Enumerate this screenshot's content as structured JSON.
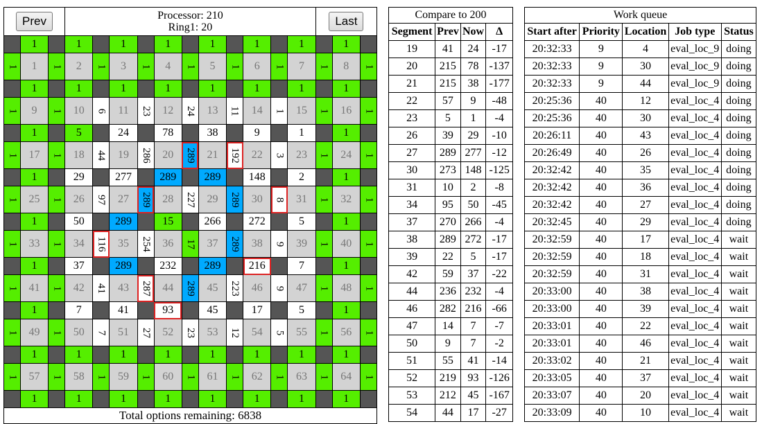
{
  "colors": {
    "dark": "#555555",
    "green": "#55ee00",
    "white": "#ffffff",
    "grey": "#d3d3d3",
    "blue": "#00aaff",
    "red": "#dd2222"
  },
  "header": {
    "prev_label": "Prev",
    "last_label": "Last",
    "processor_text": "Processor: 210",
    "ring_text": "Ring1: 20"
  },
  "board": {
    "footer_text": "Total options remaining: 6838",
    "rows": [
      [
        [
          "d",
          ""
        ],
        [
          "g",
          "1"
        ],
        [
          "d",
          ""
        ],
        [
          "g",
          "1"
        ],
        [
          "d",
          ""
        ],
        [
          "g",
          "1"
        ],
        [
          "d",
          ""
        ],
        [
          "g",
          "1"
        ],
        [
          "d",
          ""
        ],
        [
          "g",
          "1"
        ],
        [
          "d",
          ""
        ],
        [
          "g",
          "1"
        ],
        [
          "d",
          ""
        ],
        [
          "g",
          "1"
        ],
        [
          "d",
          ""
        ],
        [
          "g",
          "1"
        ],
        [
          "d",
          ""
        ]
      ],
      [
        [
          "gr",
          "1"
        ],
        [
          "s",
          "1"
        ],
        [
          "gr",
          "1"
        ],
        [
          "s",
          "2"
        ],
        [
          "gr",
          "1"
        ],
        [
          "s",
          "3"
        ],
        [
          "gr",
          "1"
        ],
        [
          "s",
          "4"
        ],
        [
          "gr",
          "1"
        ],
        [
          "s",
          "5"
        ],
        [
          "gr",
          "1"
        ],
        [
          "s",
          "6"
        ],
        [
          "gr",
          "1"
        ],
        [
          "s",
          "7"
        ],
        [
          "gr",
          "1"
        ],
        [
          "s",
          "8"
        ],
        [
          "gr",
          "1"
        ]
      ],
      [
        [
          "d",
          ""
        ],
        [
          "g",
          "1"
        ],
        [
          "d",
          ""
        ],
        [
          "g",
          "1"
        ],
        [
          "d",
          ""
        ],
        [
          "g",
          "1"
        ],
        [
          "d",
          ""
        ],
        [
          "g",
          "1"
        ],
        [
          "d",
          ""
        ],
        [
          "g",
          "1"
        ],
        [
          "d",
          ""
        ],
        [
          "g",
          "1"
        ],
        [
          "d",
          ""
        ],
        [
          "g",
          "1"
        ],
        [
          "d",
          ""
        ],
        [
          "g",
          "1"
        ],
        [
          "d",
          ""
        ]
      ],
      [
        [
          "gr",
          "1"
        ],
        [
          "s",
          "9"
        ],
        [
          "gr",
          "1"
        ],
        [
          "s",
          "10"
        ],
        [
          "wr",
          "6"
        ],
        [
          "s",
          "11"
        ],
        [
          "wr",
          "23"
        ],
        [
          "s",
          "12"
        ],
        [
          "wr",
          "24"
        ],
        [
          "s",
          "13"
        ],
        [
          "wr",
          "11"
        ],
        [
          "s",
          "14"
        ],
        [
          "wr",
          "1"
        ],
        [
          "s",
          "15"
        ],
        [
          "gr",
          "1"
        ],
        [
          "s",
          "16"
        ],
        [
          "gr",
          "1"
        ]
      ],
      [
        [
          "d",
          ""
        ],
        [
          "g",
          "1"
        ],
        [
          "d",
          ""
        ],
        [
          "g",
          "5"
        ],
        [
          "d",
          ""
        ],
        [
          "w",
          "24"
        ],
        [
          "d",
          ""
        ],
        [
          "w",
          "78"
        ],
        [
          "d",
          ""
        ],
        [
          "w",
          "38"
        ],
        [
          "d",
          ""
        ],
        [
          "w",
          "9"
        ],
        [
          "d",
          ""
        ],
        [
          "w",
          "1"
        ],
        [
          "d",
          ""
        ],
        [
          "g",
          "1"
        ],
        [
          "d",
          ""
        ]
      ],
      [
        [
          "gr",
          "1"
        ],
        [
          "s",
          "17"
        ],
        [
          "gr",
          "1"
        ],
        [
          "s",
          "18"
        ],
        [
          "wr",
          "44"
        ],
        [
          "s",
          "19"
        ],
        [
          "wr",
          "286"
        ],
        [
          "s",
          "20"
        ],
        [
          "br",
          "289"
        ],
        [
          "s",
          "21"
        ],
        [
          "wrr",
          "192"
        ],
        [
          "s",
          "22"
        ],
        [
          "wr",
          "3"
        ],
        [
          "s",
          "23"
        ],
        [
          "gr",
          "1"
        ],
        [
          "s",
          "24"
        ],
        [
          "gr",
          "1"
        ]
      ],
      [
        [
          "d",
          ""
        ],
        [
          "g",
          "1"
        ],
        [
          "d",
          ""
        ],
        [
          "w",
          "29"
        ],
        [
          "d",
          ""
        ],
        [
          "w",
          "277"
        ],
        [
          "d",
          ""
        ],
        [
          "b",
          "289"
        ],
        [
          "d",
          ""
        ],
        [
          "b",
          "289"
        ],
        [
          "d",
          ""
        ],
        [
          "w",
          "148"
        ],
        [
          "d",
          ""
        ],
        [
          "w",
          "2"
        ],
        [
          "d",
          ""
        ],
        [
          "g",
          "1"
        ],
        [
          "d",
          ""
        ]
      ],
      [
        [
          "gr",
          "1"
        ],
        [
          "s",
          "25"
        ],
        [
          "gr",
          "1"
        ],
        [
          "s",
          "26"
        ],
        [
          "wr",
          "97"
        ],
        [
          "s",
          "27"
        ],
        [
          "br",
          "289"
        ],
        [
          "s",
          "28"
        ],
        [
          "wr",
          "227"
        ],
        [
          "s",
          "29"
        ],
        [
          "bn",
          "289"
        ],
        [
          "s",
          "30"
        ],
        [
          "wrr",
          "8"
        ],
        [
          "s",
          "31"
        ],
        [
          "gr",
          "1"
        ],
        [
          "s",
          "32"
        ],
        [
          "gr",
          "1"
        ]
      ],
      [
        [
          "d",
          ""
        ],
        [
          "g",
          "1"
        ],
        [
          "d",
          ""
        ],
        [
          "w",
          "50"
        ],
        [
          "d",
          ""
        ],
        [
          "b",
          "289"
        ],
        [
          "d",
          ""
        ],
        [
          "g",
          "15"
        ],
        [
          "d",
          ""
        ],
        [
          "w",
          "266"
        ],
        [
          "d",
          ""
        ],
        [
          "w",
          "272"
        ],
        [
          "d",
          ""
        ],
        [
          "w",
          "5"
        ],
        [
          "d",
          ""
        ],
        [
          "g",
          "1"
        ],
        [
          "d",
          ""
        ]
      ],
      [
        [
          "gr",
          "1"
        ],
        [
          "s",
          "33"
        ],
        [
          "gr",
          "1"
        ],
        [
          "s",
          "34"
        ],
        [
          "wrr",
          "116"
        ],
        [
          "s",
          "35"
        ],
        [
          "wr",
          "254"
        ],
        [
          "s",
          "36"
        ],
        [
          "gr",
          "17"
        ],
        [
          "s",
          "37"
        ],
        [
          "bn",
          "289"
        ],
        [
          "s",
          "38"
        ],
        [
          "wr",
          "9"
        ],
        [
          "s",
          "39"
        ],
        [
          "gr",
          "1"
        ],
        [
          "s",
          "40"
        ],
        [
          "gr",
          "1"
        ]
      ],
      [
        [
          "d",
          ""
        ],
        [
          "g",
          "1"
        ],
        [
          "d",
          ""
        ],
        [
          "w",
          "37"
        ],
        [
          "d",
          ""
        ],
        [
          "b",
          "289"
        ],
        [
          "d",
          ""
        ],
        [
          "w",
          "232"
        ],
        [
          "d",
          ""
        ],
        [
          "b",
          "289"
        ],
        [
          "d",
          ""
        ],
        [
          "wx",
          "216"
        ],
        [
          "d",
          ""
        ],
        [
          "w",
          "7"
        ],
        [
          "d",
          ""
        ],
        [
          "g",
          "1"
        ],
        [
          "d",
          ""
        ]
      ],
      [
        [
          "gr",
          "1"
        ],
        [
          "s",
          "41"
        ],
        [
          "gr",
          "1"
        ],
        [
          "s",
          "42"
        ],
        [
          "wr",
          "41"
        ],
        [
          "s",
          "43"
        ],
        [
          "wrr",
          "287"
        ],
        [
          "s",
          "44"
        ],
        [
          "bn",
          "289"
        ],
        [
          "s",
          "45"
        ],
        [
          "wr",
          "223"
        ],
        [
          "s",
          "46"
        ],
        [
          "wr",
          "9"
        ],
        [
          "s",
          "47"
        ],
        [
          "gr",
          "1"
        ],
        [
          "s",
          "48"
        ],
        [
          "gr",
          "1"
        ]
      ],
      [
        [
          "d",
          ""
        ],
        [
          "g",
          "1"
        ],
        [
          "d",
          ""
        ],
        [
          "w",
          "7"
        ],
        [
          "d",
          ""
        ],
        [
          "w",
          "41"
        ],
        [
          "d",
          ""
        ],
        [
          "wx",
          "93"
        ],
        [
          "d",
          ""
        ],
        [
          "w",
          "45"
        ],
        [
          "d",
          ""
        ],
        [
          "w",
          "17"
        ],
        [
          "d",
          ""
        ],
        [
          "w",
          "5"
        ],
        [
          "d",
          ""
        ],
        [
          "g",
          "1"
        ],
        [
          "d",
          ""
        ]
      ],
      [
        [
          "gr",
          "1"
        ],
        [
          "s",
          "49"
        ],
        [
          "gr",
          "1"
        ],
        [
          "s",
          "50"
        ],
        [
          "wr",
          "7"
        ],
        [
          "s",
          "51"
        ],
        [
          "wr",
          "27"
        ],
        [
          "s",
          "52"
        ],
        [
          "wr",
          "23"
        ],
        [
          "s",
          "53"
        ],
        [
          "wr",
          "12"
        ],
        [
          "s",
          "54"
        ],
        [
          "wr",
          "5"
        ],
        [
          "s",
          "55"
        ],
        [
          "gr",
          "1"
        ],
        [
          "s",
          "56"
        ],
        [
          "gr",
          "1"
        ]
      ],
      [
        [
          "d",
          ""
        ],
        [
          "g",
          "1"
        ],
        [
          "d",
          ""
        ],
        [
          "g",
          "1"
        ],
        [
          "d",
          ""
        ],
        [
          "g",
          "1"
        ],
        [
          "d",
          ""
        ],
        [
          "g",
          "1"
        ],
        [
          "d",
          ""
        ],
        [
          "g",
          "1"
        ],
        [
          "d",
          ""
        ],
        [
          "g",
          "1"
        ],
        [
          "d",
          ""
        ],
        [
          "g",
          "1"
        ],
        [
          "d",
          ""
        ],
        [
          "g",
          "1"
        ],
        [
          "d",
          ""
        ]
      ],
      [
        [
          "gr",
          "1"
        ],
        [
          "s",
          "57"
        ],
        [
          "gr",
          "1"
        ],
        [
          "s",
          "58"
        ],
        [
          "gr",
          "1"
        ],
        [
          "s",
          "59"
        ],
        [
          "gr",
          "1"
        ],
        [
          "s",
          "60"
        ],
        [
          "gr",
          "1"
        ],
        [
          "s",
          "61"
        ],
        [
          "gr",
          "1"
        ],
        [
          "s",
          "62"
        ],
        [
          "gr",
          "1"
        ],
        [
          "s",
          "63"
        ],
        [
          "gr",
          "1"
        ],
        [
          "s",
          "64"
        ],
        [
          "gr",
          "1"
        ]
      ],
      [
        [
          "d",
          ""
        ],
        [
          "g",
          "1"
        ],
        [
          "d",
          ""
        ],
        [
          "g",
          "1"
        ],
        [
          "d",
          ""
        ],
        [
          "g",
          "1"
        ],
        [
          "d",
          ""
        ],
        [
          "g",
          "1"
        ],
        [
          "d",
          ""
        ],
        [
          "g",
          "1"
        ],
        [
          "d",
          ""
        ],
        [
          "g",
          "1"
        ],
        [
          "d",
          ""
        ],
        [
          "g",
          "1"
        ],
        [
          "d",
          ""
        ],
        [
          "g",
          "1"
        ],
        [
          "d",
          ""
        ]
      ]
    ]
  },
  "compare": {
    "title": "Compare to 200",
    "columns": [
      "Segment",
      "Prev",
      "Now",
      "Δ"
    ],
    "rows": [
      [
        "19",
        "41",
        "24",
        "-17"
      ],
      [
        "20",
        "215",
        "78",
        "-137"
      ],
      [
        "21",
        "215",
        "38",
        "-177"
      ],
      [
        "22",
        "57",
        "9",
        "-48"
      ],
      [
        "23",
        "5",
        "1",
        "-4"
      ],
      [
        "26",
        "39",
        "29",
        "-10"
      ],
      [
        "27",
        "289",
        "277",
        "-12"
      ],
      [
        "30",
        "273",
        "148",
        "-125"
      ],
      [
        "31",
        "10",
        "2",
        "-8"
      ],
      [
        "34",
        "95",
        "50",
        "-45"
      ],
      [
        "37",
        "270",
        "266",
        "-4"
      ],
      [
        "38",
        "289",
        "272",
        "-17"
      ],
      [
        "39",
        "22",
        "5",
        "-17"
      ],
      [
        "42",
        "59",
        "37",
        "-22"
      ],
      [
        "44",
        "236",
        "232",
        "-4"
      ],
      [
        "46",
        "282",
        "216",
        "-66"
      ],
      [
        "47",
        "14",
        "7",
        "-7"
      ],
      [
        "50",
        "9",
        "7",
        "-2"
      ],
      [
        "51",
        "55",
        "41",
        "-14"
      ],
      [
        "52",
        "219",
        "93",
        "-126"
      ],
      [
        "53",
        "212",
        "45",
        "-167"
      ],
      [
        "54",
        "44",
        "17",
        "-27"
      ]
    ]
  },
  "queue": {
    "title": "Work queue",
    "columns": [
      "Start after",
      "Priority",
      "Location",
      "Job type",
      "Status"
    ],
    "rows": [
      [
        "20:32:33",
        "9",
        "4",
        "eval_loc_9",
        "doing"
      ],
      [
        "20:32:33",
        "9",
        "30",
        "eval_loc_9",
        "doing"
      ],
      [
        "20:32:33",
        "9",
        "44",
        "eval_loc_9",
        "doing"
      ],
      [
        "20:25:36",
        "40",
        "12",
        "eval_loc_4",
        "doing"
      ],
      [
        "20:25:36",
        "40",
        "30",
        "eval_loc_4",
        "doing"
      ],
      [
        "20:26:11",
        "40",
        "43",
        "eval_loc_4",
        "doing"
      ],
      [
        "20:26:49",
        "40",
        "26",
        "eval_loc_4",
        "doing"
      ],
      [
        "20:32:42",
        "40",
        "35",
        "eval_loc_4",
        "doing"
      ],
      [
        "20:32:42",
        "40",
        "36",
        "eval_loc_4",
        "doing"
      ],
      [
        "20:32:42",
        "40",
        "27",
        "eval_loc_4",
        "doing"
      ],
      [
        "20:32:45",
        "40",
        "29",
        "eval_loc_4",
        "doing"
      ],
      [
        "20:32:59",
        "40",
        "17",
        "eval_loc_4",
        "wait"
      ],
      [
        "20:32:59",
        "40",
        "18",
        "eval_loc_4",
        "wait"
      ],
      [
        "20:32:59",
        "40",
        "31",
        "eval_loc_4",
        "wait"
      ],
      [
        "20:33:00",
        "40",
        "38",
        "eval_loc_4",
        "wait"
      ],
      [
        "20:33:00",
        "40",
        "39",
        "eval_loc_4",
        "wait"
      ],
      [
        "20:33:01",
        "40",
        "22",
        "eval_loc_4",
        "wait"
      ],
      [
        "20:33:01",
        "40",
        "46",
        "eval_loc_4",
        "wait"
      ],
      [
        "20:33:02",
        "40",
        "21",
        "eval_loc_4",
        "wait"
      ],
      [
        "20:33:05",
        "40",
        "37",
        "eval_loc_4",
        "wait"
      ],
      [
        "20:33:07",
        "40",
        "20",
        "eval_loc_4",
        "wait"
      ],
      [
        "20:33:09",
        "40",
        "10",
        "eval_loc_4",
        "wait"
      ]
    ]
  }
}
